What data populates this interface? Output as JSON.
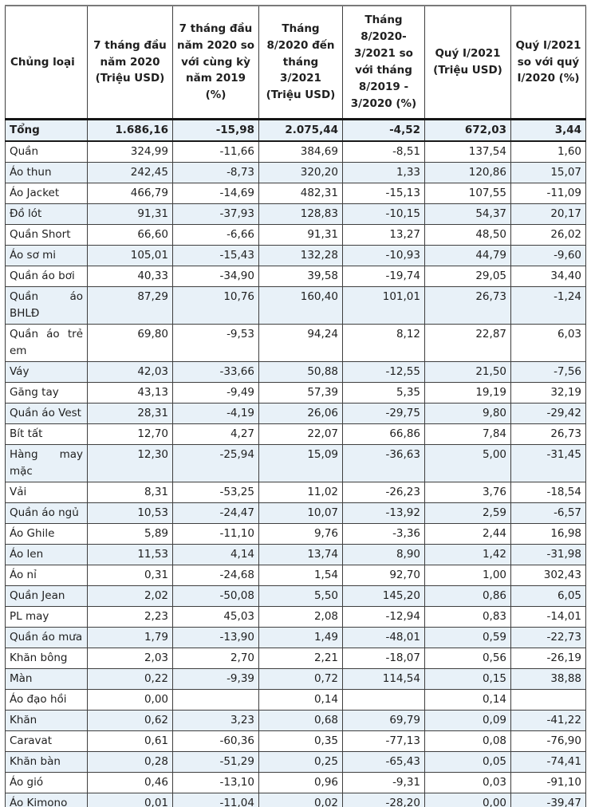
{
  "table": {
    "columns": [
      "Chủng loại",
      "7 tháng đầu năm 2020 (Triệu USD)",
      "7 tháng đầu năm 2020 so với cùng kỳ năm 2019 (%)",
      "Tháng 8/2020 đến tháng 3/2021 (Triệu USD)",
      "Tháng 8/2020-3/2021 so với tháng 8/2019 - 3/2020 (%)",
      "Quý I/2021 (Triệu USD)",
      "Quý I/2021 so với quý I/2020 (%)"
    ],
    "total_row": [
      "Tổng",
      "1.686,16",
      "-15,98",
      "2.075,44",
      "-4,52",
      "672,03",
      "3,44"
    ],
    "rows": [
      [
        "Quần",
        "324,99",
        "-11,66",
        "384,69",
        "-8,51",
        "137,54",
        "1,60"
      ],
      [
        "Áo thun",
        "242,45",
        "-8,73",
        "320,20",
        "1,33",
        "120,86",
        "15,07"
      ],
      [
        "Áo Jacket",
        "466,79",
        "-14,69",
        "482,31",
        "-15,13",
        "107,55",
        "-11,09"
      ],
      [
        "Đồ lót",
        "91,31",
        "-37,93",
        "128,83",
        "-10,15",
        "54,37",
        "20,17"
      ],
      [
        "Quần Short",
        "66,60",
        "-6,66",
        "91,31",
        "13,27",
        "48,50",
        "26,02"
      ],
      [
        "Áo sơ mi",
        "105,01",
        "-15,43",
        "132,28",
        "-10,93",
        "44,79",
        "-9,60"
      ],
      [
        "Quần áo bơi",
        "40,33",
        "-34,90",
        "39,58",
        "-19,74",
        "29,05",
        "34,40"
      ],
      [
        "Quần áo BHLĐ",
        "87,29",
        "10,76",
        "160,40",
        "101,01",
        "26,73",
        "-1,24"
      ],
      [
        "Quần áo trẻ em",
        "69,80",
        "-9,53",
        "94,24",
        "8,12",
        "22,87",
        "6,03"
      ],
      [
        "Váy",
        "42,03",
        "-33,66",
        "50,88",
        "-12,55",
        "21,50",
        "-7,56"
      ],
      [
        "Găng tay",
        "43,13",
        "-9,49",
        "57,39",
        "5,35",
        "19,19",
        "32,19"
      ],
      [
        "Quần áo Vest",
        "28,31",
        "-4,19",
        "26,06",
        "-29,75",
        "9,80",
        "-29,42"
      ],
      [
        "Bít tất",
        "12,70",
        "4,27",
        "22,07",
        "66,86",
        "7,84",
        "26,73"
      ],
      [
        "Hàng may mặc",
        "12,30",
        "-25,94",
        "15,09",
        "-36,63",
        "5,00",
        "-31,45"
      ],
      [
        "Vải",
        "8,31",
        "-53,25",
        "11,02",
        "-26,23",
        "3,76",
        "-18,54"
      ],
      [
        "Quần áo ngủ",
        "10,53",
        "-24,47",
        "10,07",
        "-13,92",
        "2,59",
        "-6,57"
      ],
      [
        "Áo Ghile",
        "5,89",
        "-11,10",
        "9,76",
        "-3,36",
        "2,44",
        "16,98"
      ],
      [
        "Áo len",
        "11,53",
        "4,14",
        "13,74",
        "8,90",
        "1,42",
        "-31,98"
      ],
      [
        "Áo nỉ",
        "0,31",
        "-24,68",
        "1,54",
        "92,70",
        "1,00",
        "302,43"
      ],
      [
        "Quần Jean",
        "2,02",
        "-50,08",
        "5,50",
        "145,20",
        "0,86",
        "6,05"
      ],
      [
        "PL may",
        "2,23",
        "45,03",
        "2,08",
        "-12,94",
        "0,83",
        "-14,01"
      ],
      [
        "Quần áo mưa",
        "1,79",
        "-13,90",
        "1,49",
        "-48,01",
        "0,59",
        "-22,73"
      ],
      [
        "Khăn bông",
        "2,03",
        "2,70",
        "2,21",
        "-18,07",
        "0,56",
        "-26,19"
      ],
      [
        "Màn",
        "0,22",
        "-9,39",
        "0,72",
        "114,54",
        "0,15",
        "38,88"
      ],
      [
        "Áo đạo hồi",
        "0,00",
        "",
        "0,14",
        "",
        "0,14",
        ""
      ],
      [
        "Khăn",
        "0,62",
        "3,23",
        "0,68",
        "69,79",
        "0,09",
        "-41,22"
      ],
      [
        "Caravat",
        "0,61",
        "-60,36",
        "0,35",
        "-77,13",
        "0,08",
        "-76,90"
      ],
      [
        "Khăn bàn",
        "0,28",
        "-51,29",
        "0,25",
        "-65,43",
        "0,05",
        "-74,41"
      ],
      [
        "Áo gió",
        "0,46",
        "-13,10",
        "0,96",
        "-9,31",
        "0,03",
        "-91,10"
      ],
      [
        "Áo Kimono",
        "0,01",
        "-11,04",
        "0,02",
        "-28,20",
        "0,00",
        "-39,47"
      ]
    ]
  },
  "colors": {
    "stripe_row": "#e8f1f8",
    "text": "#1f1f1f",
    "cell_border": "#3f3f3f",
    "heavy_border": "#151515"
  }
}
